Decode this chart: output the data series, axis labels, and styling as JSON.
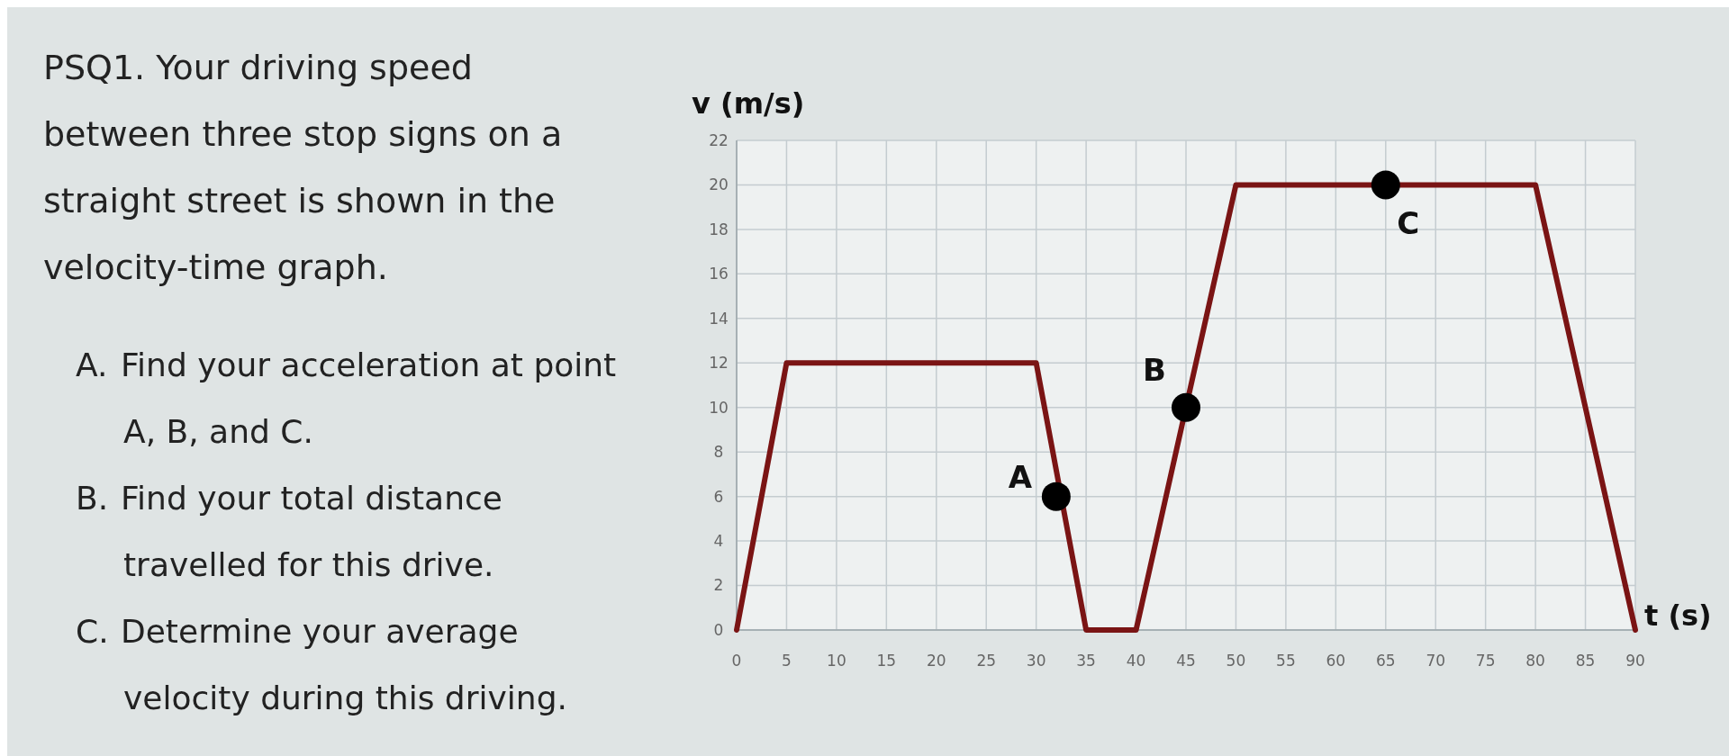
{
  "chart_data": {
    "type": "line",
    "title": "PSQ1. Your driving speed between three stop signs on a straight street is shown in the velocity-time graph.",
    "xlabel": "t (s)",
    "ylabel": "v (m/s)",
    "x": [
      0,
      5,
      30,
      35,
      40,
      50,
      80,
      90
    ],
    "series": [
      {
        "color": "#7a1414",
        "values": [
          0,
          12,
          12,
          0,
          0,
          20,
          20,
          0
        ],
        "marker": "none"
      },
      {
        "type": "scatter",
        "color": "#000000",
        "x": [
          32,
          45,
          65
        ],
        "values": [
          6,
          10,
          20
        ],
        "marker": "circle"
      }
    ],
    "xlim": [
      0,
      90
    ],
    "xticks": [
      0,
      5,
      10,
      15,
      20,
      25,
      30,
      35,
      40,
      45,
      50,
      55,
      60,
      65,
      70,
      75,
      80,
      85,
      90
    ],
    "ylim": [
      0,
      22
    ],
    "yticks": [
      0,
      2,
      4,
      6,
      8,
      10,
      12,
      14,
      16,
      18,
      20,
      22
    ],
    "grid": true,
    "annotations": [
      "A. Find your acceleration at point A, B, and C.",
      "B. Find your total distance travelled for this drive.",
      "C. Determine your average velocity during this driving.",
      {
        "text": "A",
        "x": 32,
        "y": 6
      },
      {
        "text": "B",
        "x": 45,
        "y": 10
      },
      {
        "text": "C",
        "x": 65,
        "y": 20
      }
    ]
  }
}
